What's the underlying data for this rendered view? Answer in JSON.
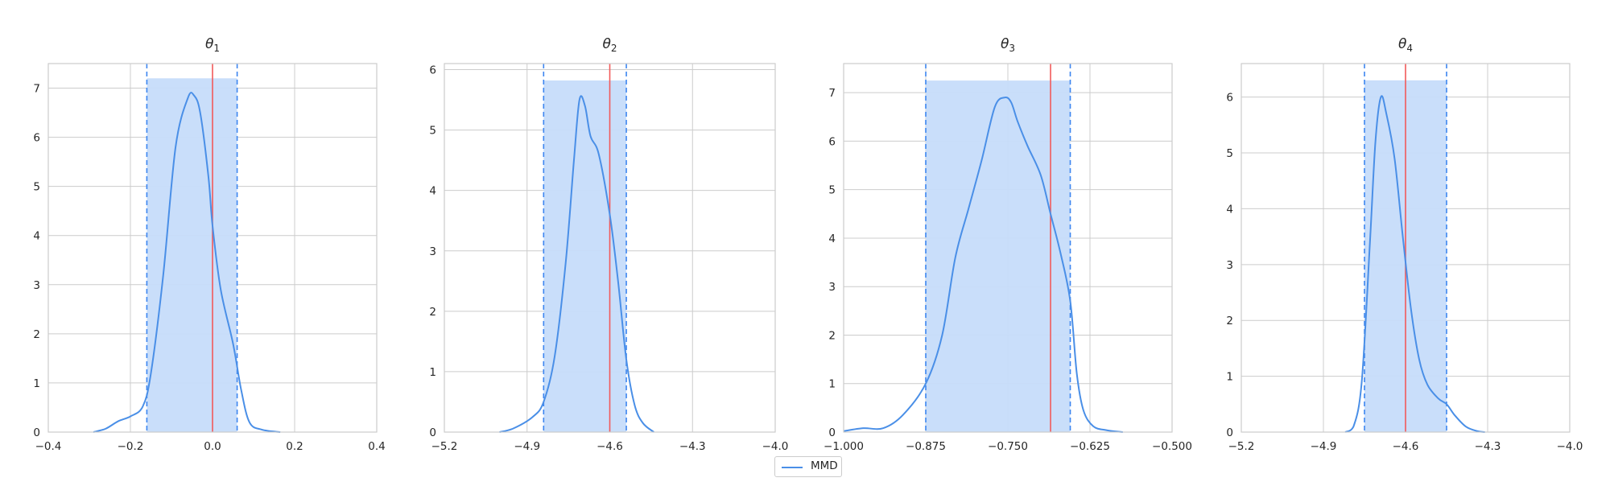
{
  "chart_data": [
    {
      "type": "line",
      "title_symbol": "θ",
      "title_subscript": "1",
      "xlim": [
        -0.4,
        0.4
      ],
      "ylim": [
        0,
        7.5
      ],
      "xticks": [
        -0.4,
        -0.2,
        0.0,
        0.2,
        0.4
      ],
      "xtick_labels": [
        "−0.4",
        "−0.2",
        "0.0",
        "0.2",
        "0.4"
      ],
      "yticks": [
        0,
        1,
        2,
        3,
        4,
        5,
        6,
        7
      ],
      "ytick_labels": [
        "0",
        "1",
        "2",
        "3",
        "4",
        "5",
        "6",
        "7"
      ],
      "grid": true,
      "true_value": 0.0,
      "interval": [
        -0.16,
        0.06
      ],
      "interval_height": 7.2,
      "series": [
        {
          "name": "MMD",
          "x": [
            -0.29,
            -0.26,
            -0.23,
            -0.2,
            -0.17,
            -0.15,
            -0.12,
            -0.09,
            -0.06,
            -0.045,
            -0.03,
            -0.01,
            0.0,
            0.02,
            0.05,
            0.07,
            0.09,
            0.12,
            0.165
          ],
          "y": [
            0.0,
            0.07,
            0.22,
            0.32,
            0.52,
            1.2,
            3.2,
            5.8,
            6.8,
            6.85,
            6.5,
            5.2,
            4.2,
            2.9,
            1.8,
            0.85,
            0.2,
            0.05,
            0.0
          ]
        }
      ]
    },
    {
      "type": "line",
      "title_symbol": "θ",
      "title_subscript": "2",
      "xlim": [
        -5.2,
        -4.0
      ],
      "ylim": [
        0,
        6.1
      ],
      "xticks": [
        -5.2,
        -4.9,
        -4.6,
        -4.3,
        -4.0
      ],
      "xtick_labels": [
        "−5.2",
        "−4.9",
        "−4.6",
        "−4.3",
        "−4.0"
      ],
      "yticks": [
        0,
        1,
        2,
        3,
        4,
        5,
        6
      ],
      "ytick_labels": [
        "0",
        "1",
        "2",
        "3",
        "4",
        "5",
        "6"
      ],
      "grid": true,
      "true_value": -4.6,
      "interval": [
        -4.84,
        -4.54
      ],
      "interval_height": 5.82,
      "series": [
        {
          "name": "MMD",
          "x": [
            -5.0,
            -4.95,
            -4.88,
            -4.84,
            -4.8,
            -4.76,
            -4.73,
            -4.71,
            -4.69,
            -4.67,
            -4.64,
            -4.6,
            -4.57,
            -4.54,
            -4.51,
            -4.48,
            -4.44
          ],
          "y": [
            0.0,
            0.06,
            0.25,
            0.5,
            1.25,
            2.8,
            4.5,
            5.5,
            5.4,
            4.9,
            4.6,
            3.6,
            2.5,
            1.2,
            0.45,
            0.15,
            0.0
          ]
        }
      ]
    },
    {
      "type": "line",
      "title_symbol": "θ",
      "title_subscript": "3",
      "xlim": [
        -1.0,
        -0.5
      ],
      "ylim": [
        0,
        7.6
      ],
      "xticks": [
        -1.0,
        -0.875,
        -0.75,
        -0.625,
        -0.5
      ],
      "xtick_labels": [
        "−1.000",
        "−0.875",
        "−0.750",
        "−0.625",
        "−0.500"
      ],
      "yticks": [
        0,
        1,
        2,
        3,
        4,
        5,
        6,
        7
      ],
      "ytick_labels": [
        "0",
        "1",
        "2",
        "3",
        "4",
        "5",
        "6",
        "7"
      ],
      "grid": true,
      "true_value": -0.685,
      "interval": [
        -0.875,
        -0.655
      ],
      "interval_height": 7.25,
      "series": [
        {
          "name": "MMD",
          "x": [
            -1.0,
            -0.97,
            -0.94,
            -0.91,
            -0.875,
            -0.85,
            -0.83,
            -0.81,
            -0.79,
            -0.77,
            -0.755,
            -0.745,
            -0.735,
            -0.72,
            -0.7,
            -0.685,
            -0.67,
            -0.655,
            -0.645,
            -0.635,
            -0.62,
            -0.6,
            -0.575
          ],
          "y": [
            0.02,
            0.08,
            0.08,
            0.35,
            1.0,
            2.0,
            3.6,
            4.6,
            5.6,
            6.7,
            6.9,
            6.8,
            6.4,
            5.9,
            5.3,
            4.5,
            3.7,
            2.7,
            1.2,
            0.45,
            0.12,
            0.04,
            0.0
          ]
        }
      ]
    },
    {
      "type": "line",
      "title_symbol": "θ",
      "title_subscript": "4",
      "xlim": [
        -5.2,
        -4.0
      ],
      "ylim": [
        0,
        6.6
      ],
      "xticks": [
        -5.2,
        -4.9,
        -4.6,
        -4.3,
        -4.0
      ],
      "xtick_labels": [
        "−5.2",
        "−4.9",
        "−4.6",
        "−4.3",
        "−4.0"
      ],
      "yticks": [
        0,
        1,
        2,
        3,
        4,
        5,
        6
      ],
      "ytick_labels": [
        "0",
        "1",
        "2",
        "3",
        "4",
        "5",
        "6"
      ],
      "grid": true,
      "true_value": -4.6,
      "interval": [
        -4.75,
        -4.45
      ],
      "interval_height": 6.3,
      "series": [
        {
          "name": "MMD",
          "x": [
            -4.82,
            -4.79,
            -4.76,
            -4.73,
            -4.71,
            -4.69,
            -4.67,
            -4.64,
            -4.61,
            -4.58,
            -4.55,
            -4.52,
            -4.48,
            -4.45,
            -4.42,
            -4.38,
            -4.34,
            -4.31
          ],
          "y": [
            0.0,
            0.1,
            0.9,
            3.4,
            5.2,
            6.0,
            5.7,
            4.9,
            3.5,
            2.2,
            1.3,
            0.85,
            0.6,
            0.5,
            0.3,
            0.1,
            0.02,
            0.0
          ]
        }
      ]
    }
  ],
  "legend": {
    "label": "MMD",
    "placement": "bottom-center"
  },
  "colors": {
    "kde": "#4a8fe7",
    "interval_fill": "#c6dcfa",
    "interval_line": "#3d86f0",
    "true_line": "#f25a5a",
    "grid": "#cccccc",
    "spine": "#cccccc"
  }
}
